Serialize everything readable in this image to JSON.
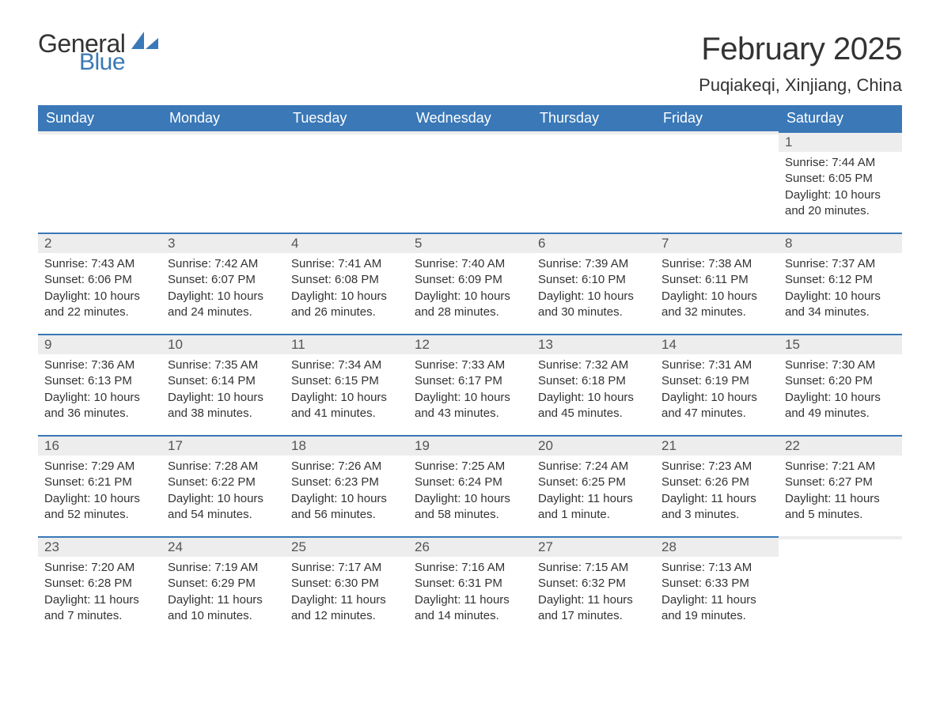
{
  "logo": {
    "general": "General",
    "blue": "Blue",
    "accent": "#3a78b7"
  },
  "title": "February 2025",
  "location": "Puqiakeqi, Xinjiang, China",
  "weekdays": [
    "Sunday",
    "Monday",
    "Tuesday",
    "Wednesday",
    "Thursday",
    "Friday",
    "Saturday"
  ],
  "colors": {
    "header_bg": "#3a78b7",
    "header_text": "#ffffff",
    "daynum_bg": "#ededed",
    "daynum_border": "#3a78b7",
    "text": "#333333"
  },
  "weeks": [
    [
      {
        "n": "",
        "sunrise": "",
        "sunset": "",
        "daylight": ""
      },
      {
        "n": "",
        "sunrise": "",
        "sunset": "",
        "daylight": ""
      },
      {
        "n": "",
        "sunrise": "",
        "sunset": "",
        "daylight": ""
      },
      {
        "n": "",
        "sunrise": "",
        "sunset": "",
        "daylight": ""
      },
      {
        "n": "",
        "sunrise": "",
        "sunset": "",
        "daylight": ""
      },
      {
        "n": "",
        "sunrise": "",
        "sunset": "",
        "daylight": ""
      },
      {
        "n": "1",
        "sunrise": "Sunrise: 7:44 AM",
        "sunset": "Sunset: 6:05 PM",
        "daylight": "Daylight: 10 hours and 20 minutes."
      }
    ],
    [
      {
        "n": "2",
        "sunrise": "Sunrise: 7:43 AM",
        "sunset": "Sunset: 6:06 PM",
        "daylight": "Daylight: 10 hours and 22 minutes."
      },
      {
        "n": "3",
        "sunrise": "Sunrise: 7:42 AM",
        "sunset": "Sunset: 6:07 PM",
        "daylight": "Daylight: 10 hours and 24 minutes."
      },
      {
        "n": "4",
        "sunrise": "Sunrise: 7:41 AM",
        "sunset": "Sunset: 6:08 PM",
        "daylight": "Daylight: 10 hours and 26 minutes."
      },
      {
        "n": "5",
        "sunrise": "Sunrise: 7:40 AM",
        "sunset": "Sunset: 6:09 PM",
        "daylight": "Daylight: 10 hours and 28 minutes."
      },
      {
        "n": "6",
        "sunrise": "Sunrise: 7:39 AM",
        "sunset": "Sunset: 6:10 PM",
        "daylight": "Daylight: 10 hours and 30 minutes."
      },
      {
        "n": "7",
        "sunrise": "Sunrise: 7:38 AM",
        "sunset": "Sunset: 6:11 PM",
        "daylight": "Daylight: 10 hours and 32 minutes."
      },
      {
        "n": "8",
        "sunrise": "Sunrise: 7:37 AM",
        "sunset": "Sunset: 6:12 PM",
        "daylight": "Daylight: 10 hours and 34 minutes."
      }
    ],
    [
      {
        "n": "9",
        "sunrise": "Sunrise: 7:36 AM",
        "sunset": "Sunset: 6:13 PM",
        "daylight": "Daylight: 10 hours and 36 minutes."
      },
      {
        "n": "10",
        "sunrise": "Sunrise: 7:35 AM",
        "sunset": "Sunset: 6:14 PM",
        "daylight": "Daylight: 10 hours and 38 minutes."
      },
      {
        "n": "11",
        "sunrise": "Sunrise: 7:34 AM",
        "sunset": "Sunset: 6:15 PM",
        "daylight": "Daylight: 10 hours and 41 minutes."
      },
      {
        "n": "12",
        "sunrise": "Sunrise: 7:33 AM",
        "sunset": "Sunset: 6:17 PM",
        "daylight": "Daylight: 10 hours and 43 minutes."
      },
      {
        "n": "13",
        "sunrise": "Sunrise: 7:32 AM",
        "sunset": "Sunset: 6:18 PM",
        "daylight": "Daylight: 10 hours and 45 minutes."
      },
      {
        "n": "14",
        "sunrise": "Sunrise: 7:31 AM",
        "sunset": "Sunset: 6:19 PM",
        "daylight": "Daylight: 10 hours and 47 minutes."
      },
      {
        "n": "15",
        "sunrise": "Sunrise: 7:30 AM",
        "sunset": "Sunset: 6:20 PM",
        "daylight": "Daylight: 10 hours and 49 minutes."
      }
    ],
    [
      {
        "n": "16",
        "sunrise": "Sunrise: 7:29 AM",
        "sunset": "Sunset: 6:21 PM",
        "daylight": "Daylight: 10 hours and 52 minutes."
      },
      {
        "n": "17",
        "sunrise": "Sunrise: 7:28 AM",
        "sunset": "Sunset: 6:22 PM",
        "daylight": "Daylight: 10 hours and 54 minutes."
      },
      {
        "n": "18",
        "sunrise": "Sunrise: 7:26 AM",
        "sunset": "Sunset: 6:23 PM",
        "daylight": "Daylight: 10 hours and 56 minutes."
      },
      {
        "n": "19",
        "sunrise": "Sunrise: 7:25 AM",
        "sunset": "Sunset: 6:24 PM",
        "daylight": "Daylight: 10 hours and 58 minutes."
      },
      {
        "n": "20",
        "sunrise": "Sunrise: 7:24 AM",
        "sunset": "Sunset: 6:25 PM",
        "daylight": "Daylight: 11 hours and 1 minute."
      },
      {
        "n": "21",
        "sunrise": "Sunrise: 7:23 AM",
        "sunset": "Sunset: 6:26 PM",
        "daylight": "Daylight: 11 hours and 3 minutes."
      },
      {
        "n": "22",
        "sunrise": "Sunrise: 7:21 AM",
        "sunset": "Sunset: 6:27 PM",
        "daylight": "Daylight: 11 hours and 5 minutes."
      }
    ],
    [
      {
        "n": "23",
        "sunrise": "Sunrise: 7:20 AM",
        "sunset": "Sunset: 6:28 PM",
        "daylight": "Daylight: 11 hours and 7 minutes."
      },
      {
        "n": "24",
        "sunrise": "Sunrise: 7:19 AM",
        "sunset": "Sunset: 6:29 PM",
        "daylight": "Daylight: 11 hours and 10 minutes."
      },
      {
        "n": "25",
        "sunrise": "Sunrise: 7:17 AM",
        "sunset": "Sunset: 6:30 PM",
        "daylight": "Daylight: 11 hours and 12 minutes."
      },
      {
        "n": "26",
        "sunrise": "Sunrise: 7:16 AM",
        "sunset": "Sunset: 6:31 PM",
        "daylight": "Daylight: 11 hours and 14 minutes."
      },
      {
        "n": "27",
        "sunrise": "Sunrise: 7:15 AM",
        "sunset": "Sunset: 6:32 PM",
        "daylight": "Daylight: 11 hours and 17 minutes."
      },
      {
        "n": "28",
        "sunrise": "Sunrise: 7:13 AM",
        "sunset": "Sunset: 6:33 PM",
        "daylight": "Daylight: 11 hours and 19 minutes."
      },
      {
        "n": "",
        "sunrise": "",
        "sunset": "",
        "daylight": ""
      }
    ]
  ]
}
